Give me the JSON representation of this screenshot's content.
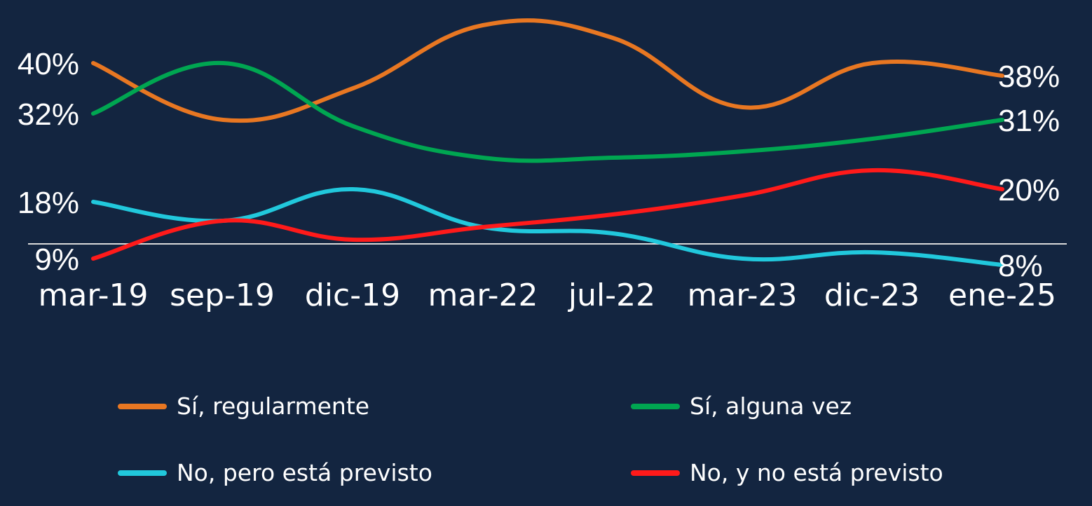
{
  "background": "#132540",
  "chart_data": {
    "type": "line",
    "title": "",
    "xlabel": "",
    "ylabel": "",
    "categories": [
      "mar-19",
      "sep-19",
      "dic-19",
      "mar-22",
      "jul-22",
      "mar-23",
      "dic-23",
      "ene-25"
    ],
    "ylim": [
      0,
      50
    ],
    "grid": false,
    "legend_position": "bottom",
    "series": [
      {
        "name": "Sí, regularmente",
        "color": "#E87722",
        "values": [
          40,
          31,
          36,
          46,
          44,
          33,
          40,
          38
        ],
        "label_first": "40%",
        "label_last": "38%"
      },
      {
        "name": "Sí, alguna vez",
        "color": "#00A651",
        "values": [
          32,
          40,
          30,
          25,
          25,
          26,
          28,
          31
        ],
        "label_first": "32%",
        "label_last": "31%"
      },
      {
        "name": "No, pero está previsto",
        "color": "#21C8DC",
        "values": [
          18,
          15,
          20,
          14,
          13,
          9,
          10,
          8
        ],
        "label_first": "18%",
        "label_last": "8%"
      },
      {
        "name": "No, y no está previsto",
        "color": "#FF1A1A",
        "values": [
          9,
          15,
          12,
          14,
          16,
          19,
          23,
          20
        ],
        "label_first": "9%",
        "label_last": "20%"
      }
    ]
  }
}
